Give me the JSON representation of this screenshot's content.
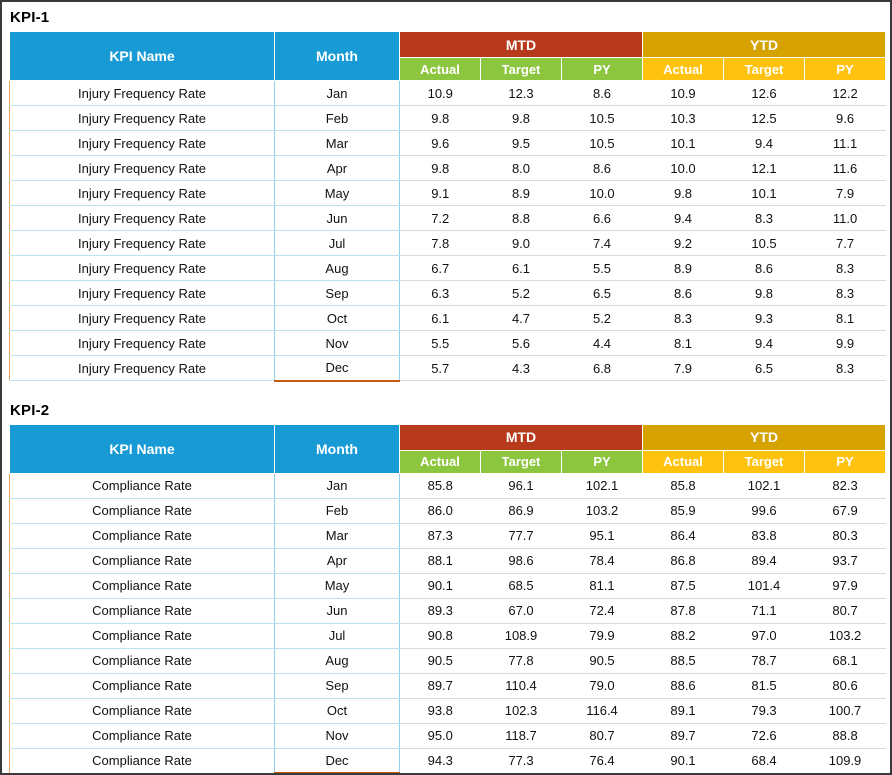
{
  "colors": {
    "header_blue": "#189BD5",
    "mtd_red": "#B83A1C",
    "ytd_gold": "#D6A200",
    "sub_green": "#8CC63F",
    "sub_yellow": "#FFC20E",
    "accent_orange": "#C55A11"
  },
  "tables": [
    {
      "title": "KPI-1",
      "header": {
        "kpi_name": "KPI Name",
        "month": "Month",
        "mtd": "MTD",
        "ytd": "YTD",
        "mtd_sub": [
          "Actual",
          "Target",
          "PY"
        ],
        "ytd_sub": [
          "Actual",
          "Target",
          "PY"
        ]
      },
      "rows": [
        [
          "Injury Frequency Rate",
          "Jan",
          "10.9",
          "12.3",
          "8.6",
          "10.9",
          "12.6",
          "12.2"
        ],
        [
          "Injury Frequency Rate",
          "Feb",
          "9.8",
          "9.8",
          "10.5",
          "10.3",
          "12.5",
          "9.6"
        ],
        [
          "Injury Frequency Rate",
          "Mar",
          "9.6",
          "9.5",
          "10.5",
          "10.1",
          "9.4",
          "11.1"
        ],
        [
          "Injury Frequency Rate",
          "Apr",
          "9.8",
          "8.0",
          "8.6",
          "10.0",
          "12.1",
          "11.6"
        ],
        [
          "Injury Frequency Rate",
          "May",
          "9.1",
          "8.9",
          "10.0",
          "9.8",
          "10.1",
          "7.9"
        ],
        [
          "Injury Frequency Rate",
          "Jun",
          "7.2",
          "8.8",
          "6.6",
          "9.4",
          "8.3",
          "11.0"
        ],
        [
          "Injury Frequency Rate",
          "Jul",
          "7.8",
          "9.0",
          "7.4",
          "9.2",
          "10.5",
          "7.7"
        ],
        [
          "Injury Frequency Rate",
          "Aug",
          "6.7",
          "6.1",
          "5.5",
          "8.9",
          "8.6",
          "8.3"
        ],
        [
          "Injury Frequency Rate",
          "Sep",
          "6.3",
          "5.2",
          "6.5",
          "8.6",
          "9.8",
          "8.3"
        ],
        [
          "Injury Frequency Rate",
          "Oct",
          "6.1",
          "4.7",
          "5.2",
          "8.3",
          "9.3",
          "8.1"
        ],
        [
          "Injury Frequency Rate",
          "Nov",
          "5.5",
          "5.6",
          "4.4",
          "8.1",
          "9.4",
          "9.9"
        ],
        [
          "Injury Frequency Rate",
          "Dec",
          "5.7",
          "4.3",
          "6.8",
          "7.9",
          "6.5",
          "8.3"
        ]
      ]
    },
    {
      "title": "KPI-2",
      "header": {
        "kpi_name": "KPI Name",
        "month": "Month",
        "mtd": "MTD",
        "ytd": "YTD",
        "mtd_sub": [
          "Actual",
          "Target",
          "PY"
        ],
        "ytd_sub": [
          "Actual",
          "Target",
          "PY"
        ]
      },
      "rows": [
        [
          "Compliance Rate",
          "Jan",
          "85.8",
          "96.1",
          "102.1",
          "85.8",
          "102.1",
          "82.3"
        ],
        [
          "Compliance Rate",
          "Feb",
          "86.0",
          "86.9",
          "103.2",
          "85.9",
          "99.6",
          "67.9"
        ],
        [
          "Compliance Rate",
          "Mar",
          "87.3",
          "77.7",
          "95.1",
          "86.4",
          "83.8",
          "80.3"
        ],
        [
          "Compliance Rate",
          "Apr",
          "88.1",
          "98.6",
          "78.4",
          "86.8",
          "89.4",
          "93.7"
        ],
        [
          "Compliance Rate",
          "May",
          "90.1",
          "68.5",
          "81.1",
          "87.5",
          "101.4",
          "97.9"
        ],
        [
          "Compliance Rate",
          "Jun",
          "89.3",
          "67.0",
          "72.4",
          "87.8",
          "71.1",
          "80.7"
        ],
        [
          "Compliance Rate",
          "Jul",
          "90.8",
          "108.9",
          "79.9",
          "88.2",
          "97.0",
          "103.2"
        ],
        [
          "Compliance Rate",
          "Aug",
          "90.5",
          "77.8",
          "90.5",
          "88.5",
          "78.7",
          "68.1"
        ],
        [
          "Compliance Rate",
          "Sep",
          "89.7",
          "110.4",
          "79.0",
          "88.6",
          "81.5",
          "80.6"
        ],
        [
          "Compliance Rate",
          "Oct",
          "93.8",
          "102.3",
          "116.4",
          "89.1",
          "79.3",
          "100.7"
        ],
        [
          "Compliance Rate",
          "Nov",
          "95.0",
          "118.7",
          "80.7",
          "89.7",
          "72.6",
          "88.8"
        ],
        [
          "Compliance Rate",
          "Dec",
          "94.3",
          "77.3",
          "76.4",
          "90.1",
          "68.4",
          "109.9"
        ]
      ]
    }
  ]
}
